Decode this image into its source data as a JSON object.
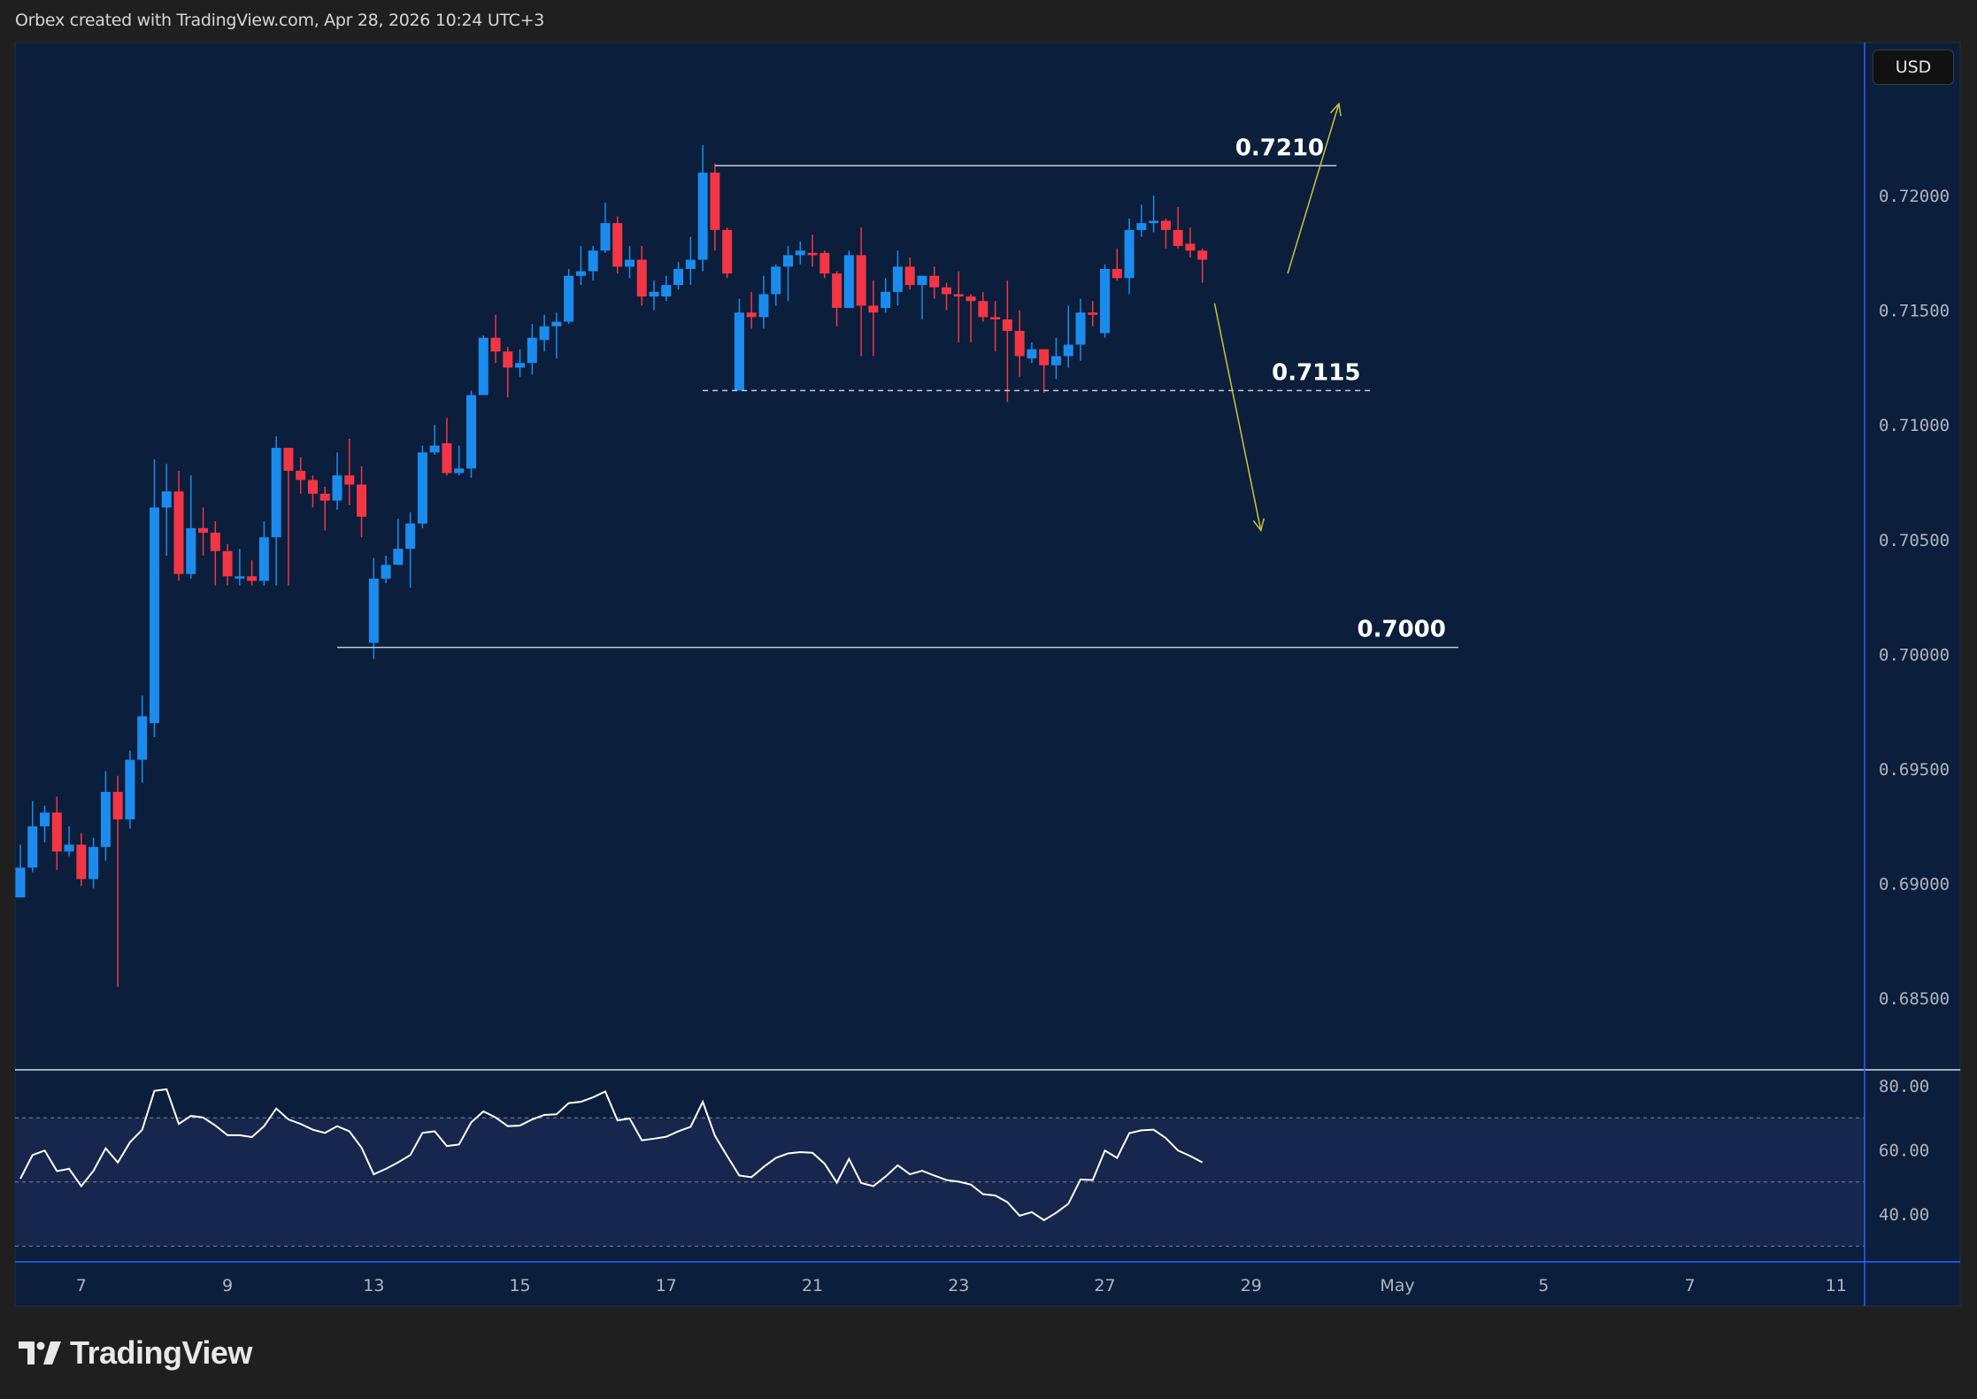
{
  "header": {
    "attribution": "Orbex created with TradingView.com, Apr 28, 2026 10:24 UTC+3"
  },
  "currency_button": "USD",
  "logo_text": "TradingView",
  "colors": {
    "background": "#0b1e3b",
    "frame": "#1f1f1f",
    "up_candle": "#1b8cee",
    "down_candle": "#f23645",
    "rsi_line": "#ffffff",
    "rsi_band": "#16264d",
    "arrow": "#c9c33a",
    "level_line": "#c8ccd6",
    "axis_border": "#2962ff"
  },
  "chart_data": {
    "type": "candlestick",
    "price_axis": {
      "ticks": [
        {
          "value": 0.72,
          "label": "0.72000"
        },
        {
          "value": 0.715,
          "label": "0.71500"
        },
        {
          "value": 0.71,
          "label": "0.71000"
        },
        {
          "value": 0.705,
          "label": "0.70500"
        },
        {
          "value": 0.7,
          "label": "0.70000"
        },
        {
          "value": 0.695,
          "label": "0.69500"
        },
        {
          "value": 0.69,
          "label": "0.69000"
        },
        {
          "value": 0.685,
          "label": "0.68500"
        }
      ]
    },
    "time_axis": {
      "ticks": [
        "7",
        "9",
        "13",
        "15",
        "17",
        "21",
        "23",
        "27",
        "29",
        "May",
        "5",
        "7",
        "11"
      ]
    },
    "grid": false,
    "candles": [
      [
        0.6894,
        0.6917,
        0.6894,
        0.6907
      ],
      [
        0.6907,
        0.6936,
        0.6905,
        0.6925
      ],
      [
        0.6925,
        0.6934,
        0.6918,
        0.6931
      ],
      [
        0.6931,
        0.6938,
        0.6906,
        0.6914
      ],
      [
        0.6914,
        0.6925,
        0.6912,
        0.6917
      ],
      [
        0.6917,
        0.6922,
        0.6899,
        0.6902
      ],
      [
        0.6902,
        0.692,
        0.6898,
        0.6916
      ],
      [
        0.6916,
        0.6949,
        0.691,
        0.694
      ],
      [
        0.694,
        0.6947,
        0.6855,
        0.6928
      ],
      [
        0.6928,
        0.6958,
        0.6924,
        0.6954
      ],
      [
        0.6954,
        0.6982,
        0.6944,
        0.6973
      ],
      [
        0.697,
        0.7085,
        0.6964,
        0.7064
      ],
      [
        0.7064,
        0.7083,
        0.7043,
        0.7071
      ],
      [
        0.7071,
        0.708,
        0.7032,
        0.7035
      ],
      [
        0.7035,
        0.7078,
        0.7033,
        0.7055
      ],
      [
        0.7055,
        0.7064,
        0.7043,
        0.7053
      ],
      [
        0.7053,
        0.7058,
        0.703,
        0.7045
      ],
      [
        0.7045,
        0.7048,
        0.703,
        0.7034
      ],
      [
        0.7033,
        0.7046,
        0.703,
        0.7034
      ],
      [
        0.7034,
        0.7041,
        0.703,
        0.7032
      ],
      [
        0.7032,
        0.7058,
        0.703,
        0.7051
      ],
      [
        0.7051,
        0.7095,
        0.703,
        0.709
      ],
      [
        0.709,
        0.709,
        0.703,
        0.708
      ],
      [
        0.708,
        0.7086,
        0.707,
        0.7076
      ],
      [
        0.7076,
        0.7078,
        0.7064,
        0.707
      ],
      [
        0.707,
        0.7073,
        0.7054,
        0.7067
      ],
      [
        0.7067,
        0.7088,
        0.7063,
        0.7078
      ],
      [
        0.7078,
        0.7094,
        0.7065,
        0.7074
      ],
      [
        0.7074,
        0.7082,
        0.7051,
        0.706
      ],
      [
        0.7005,
        0.7042,
        0.6998,
        0.7033
      ],
      [
        0.7033,
        0.7043,
        0.7031,
        0.7039
      ],
      [
        0.7039,
        0.7059,
        0.7039,
        0.7046
      ],
      [
        0.7046,
        0.7062,
        0.7029,
        0.7057
      ],
      [
        0.7057,
        0.7091,
        0.7055,
        0.7088
      ],
      [
        0.7088,
        0.71,
        0.7087,
        0.7091
      ],
      [
        0.7092,
        0.7103,
        0.7078,
        0.7079
      ],
      [
        0.7079,
        0.7091,
        0.7078,
        0.7081
      ],
      [
        0.7081,
        0.7115,
        0.7077,
        0.7113
      ],
      [
        0.7113,
        0.7139,
        0.7113,
        0.7138
      ],
      [
        0.7138,
        0.7148,
        0.7127,
        0.7132
      ],
      [
        0.7132,
        0.7134,
        0.7112,
        0.7125
      ],
      [
        0.7125,
        0.7133,
        0.7121,
        0.7127
      ],
      [
        0.7127,
        0.7144,
        0.7122,
        0.7138
      ],
      [
        0.7137,
        0.7148,
        0.7132,
        0.7143
      ],
      [
        0.7143,
        0.7149,
        0.7129,
        0.7145
      ],
      [
        0.7145,
        0.7168,
        0.7144,
        0.7165
      ],
      [
        0.7165,
        0.7178,
        0.7161,
        0.7167
      ],
      [
        0.7167,
        0.7178,
        0.7163,
        0.7176
      ],
      [
        0.7176,
        0.7197,
        0.7175,
        0.7188
      ],
      [
        0.7188,
        0.7191,
        0.7166,
        0.7169
      ],
      [
        0.7169,
        0.7178,
        0.7164,
        0.7172
      ],
      [
        0.7172,
        0.7178,
        0.7152,
        0.7156
      ],
      [
        0.7156,
        0.7163,
        0.715,
        0.7158
      ],
      [
        0.7156,
        0.7165,
        0.7154,
        0.7161
      ],
      [
        0.7161,
        0.7171,
        0.7159,
        0.7168
      ],
      [
        0.7168,
        0.7182,
        0.7161,
        0.7172
      ],
      [
        0.7172,
        0.7222,
        0.7167,
        0.721
      ],
      [
        0.721,
        0.7214,
        0.7176,
        0.7185
      ],
      [
        0.7185,
        0.7186,
        0.7164,
        0.7166
      ],
      [
        0.7115,
        0.7155,
        0.7115,
        0.7149
      ],
      [
        0.7149,
        0.7158,
        0.7142,
        0.7147
      ],
      [
        0.7147,
        0.7165,
        0.7142,
        0.7157
      ],
      [
        0.7157,
        0.717,
        0.7152,
        0.7169
      ],
      [
        0.7169,
        0.7178,
        0.7154,
        0.7174
      ],
      [
        0.7174,
        0.718,
        0.717,
        0.7176
      ],
      [
        0.7175,
        0.7183,
        0.7169,
        0.7174
      ],
      [
        0.7175,
        0.7176,
        0.7164,
        0.7166
      ],
      [
        0.7166,
        0.7167,
        0.7143,
        0.7151
      ],
      [
        0.7151,
        0.7176,
        0.7151,
        0.7174
      ],
      [
        0.7174,
        0.7186,
        0.713,
        0.7152
      ],
      [
        0.7152,
        0.7163,
        0.713,
        0.7149
      ],
      [
        0.7151,
        0.7164,
        0.7149,
        0.7158
      ],
      [
        0.7158,
        0.7176,
        0.7152,
        0.7169
      ],
      [
        0.7169,
        0.7173,
        0.7159,
        0.7161
      ],
      [
        0.7161,
        0.7165,
        0.7146,
        0.7165
      ],
      [
        0.7165,
        0.7169,
        0.7155,
        0.716
      ],
      [
        0.716,
        0.7162,
        0.715,
        0.7157
      ],
      [
        0.7157,
        0.7167,
        0.7136,
        0.7156
      ],
      [
        0.7156,
        0.7157,
        0.7136,
        0.7154
      ],
      [
        0.7154,
        0.7158,
        0.7145,
        0.7147
      ],
      [
        0.7147,
        0.7154,
        0.7132,
        0.7146
      ],
      [
        0.7146,
        0.7163,
        0.711,
        0.7141
      ],
      [
        0.7141,
        0.715,
        0.7121,
        0.713
      ],
      [
        0.7129,
        0.7136,
        0.7127,
        0.7133
      ],
      [
        0.7133,
        0.7133,
        0.7114,
        0.7126
      ],
      [
        0.7126,
        0.7138,
        0.712,
        0.713
      ],
      [
        0.713,
        0.7152,
        0.7125,
        0.7135
      ],
      [
        0.7135,
        0.7155,
        0.7128,
        0.7149
      ],
      [
        0.7149,
        0.7154,
        0.7143,
        0.7148
      ],
      [
        0.714,
        0.717,
        0.7138,
        0.7168
      ],
      [
        0.7168,
        0.7177,
        0.7163,
        0.7164
      ],
      [
        0.7164,
        0.719,
        0.7157,
        0.7185
      ],
      [
        0.7185,
        0.7196,
        0.7182,
        0.7188
      ],
      [
        0.7188,
        0.72,
        0.7184,
        0.7189
      ],
      [
        0.7189,
        0.719,
        0.7177,
        0.7185
      ],
      [
        0.7185,
        0.7195,
        0.7177,
        0.7178
      ],
      [
        0.7179,
        0.7186,
        0.7173,
        0.7176
      ],
      [
        0.7176,
        0.7177,
        0.7162,
        0.7172
      ]
    ],
    "rsi": {
      "ticks": [
        {
          "value": 80,
          "label": "80.00"
        },
        {
          "value": 60,
          "label": "60.00"
        },
        {
          "value": 40,
          "label": "40.00"
        }
      ],
      "band_upper": 70,
      "band_middle": 50,
      "band_lower": 30,
      "values": [
        51,
        58.4,
        59.8,
        53.4,
        54.1,
        48.7,
        53.5,
        60.5,
        56.1,
        62.4,
        66.3,
        78.4,
        78.9,
        68.1,
        70.6,
        70.1,
        67.6,
        64.6,
        64.6,
        64.0,
        67.4,
        72.9,
        69.5,
        68.1,
        66.3,
        65.3,
        67.4,
        65.8,
        60.7,
        52.4,
        54.1,
        56.1,
        58.4,
        65.3,
        65.8,
        61.2,
        61.7,
        68.6,
        72.0,
        70.1,
        67.4,
        67.6,
        69.5,
        70.9,
        71.1,
        74.6,
        75.0,
        76.4,
        78.2,
        69.2,
        69.8,
        63.0,
        63.5,
        64.1,
        65.8,
        67.2,
        75.0,
        64.4,
        58.1,
        52.0,
        51.5,
        54.7,
        57.5,
        58.9,
        59.3,
        59.1,
        55.7,
        49.8,
        57.2,
        49.7,
        48.7,
        51.7,
        55.2,
        52.4,
        53.5,
        52.0,
        50.6,
        50.1,
        49.2,
        46.2,
        45.8,
        43.7,
        39.5,
        40.6,
        38.1,
        40.4,
        43.2,
        50.8,
        50.6,
        59.8,
        57.5,
        65.2,
        66.1,
        66.3,
        63.7,
        59.8,
        58.1,
        56.1
      ]
    },
    "annotations": {
      "levels": [
        {
          "label": "0.7210",
          "price": 0.7213,
          "style": "solid",
          "from_bar": 57,
          "to_bar": 108
        },
        {
          "label": "0.7115",
          "price": 0.7115,
          "style": "dashed",
          "from_bar": 56,
          "to_bar": 111
        },
        {
          "label": "0.7000",
          "price": 0.7003,
          "style": "solid",
          "from_bar": 26,
          "to_bar": 118
        }
      ],
      "arrows": [
        {
          "direction": "up",
          "from": [
            104.0,
            0.7166
          ],
          "to": [
            108.2,
            0.724
          ]
        },
        {
          "direction": "down",
          "from": [
            98.0,
            0.7153
          ],
          "to": [
            101.8,
            0.7054
          ]
        }
      ]
    }
  }
}
